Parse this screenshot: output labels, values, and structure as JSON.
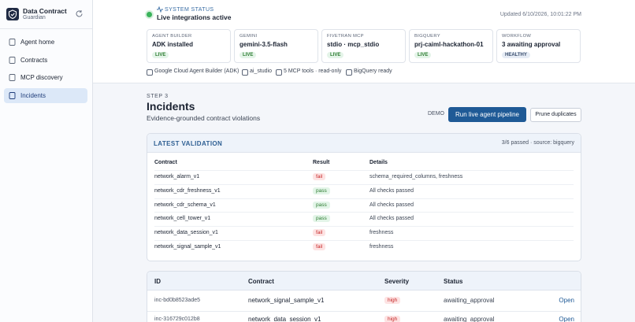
{
  "sidebar": {
    "brand": {
      "title": "Data Contract",
      "subtitle": "Guardian"
    },
    "nav": [
      "Agent home",
      "Contracts",
      "MCP discovery",
      "Incidents"
    ]
  },
  "status": {
    "label": "SYSTEM STATUS",
    "headline": "Live integrations active",
    "updated": "Updated 6/10/2026, 10:01:22 PM",
    "cards": [
      {
        "label": "AGENT BUILDER",
        "value": "ADK installed",
        "badge": "LIVE"
      },
      {
        "label": "GEMINI",
        "value": "gemini-3.5-flash",
        "badge": "LIVE"
      },
      {
        "label": "FIVETRAN MCP",
        "value": "stdio · mcp_stdio",
        "badge": "LIVE"
      },
      {
        "label": "BIGQUERY",
        "value": "prj-caiml-hackathon-01",
        "badge": "LIVE"
      },
      {
        "label": "WORKFLOW",
        "value": "3 awaiting approval",
        "badge": "HEALTHY"
      }
    ],
    "chips": [
      "Google Cloud Agent Builder (ADK)",
      "ai_studio",
      "5 MCP tools · read-only",
      "BigQuery ready"
    ]
  },
  "page": {
    "step": "STEP 3",
    "title": "Incidents",
    "subtitle": "Evidence-grounded contract violations",
    "mode": "DEMO",
    "primary_button": "Run live agent pipeline",
    "secondary_button": "Prune duplicates"
  },
  "validation": {
    "title": "LATEST VALIDATION",
    "summary": "3/6 passed · source: bigquery",
    "columns": [
      "Contract",
      "Result",
      "Details"
    ],
    "rows": [
      [
        "network_alarm_v1",
        "fail",
        "schema_required_columns, freshness"
      ],
      [
        "network_cdr_freshness_v1",
        "pass",
        "All checks passed"
      ],
      [
        "network_cdr_schema_v1",
        "pass",
        "All checks passed"
      ],
      [
        "network_cell_tower_v1",
        "pass",
        "All checks passed"
      ],
      [
        "network_data_session_v1",
        "fail",
        "freshness"
      ],
      [
        "network_signal_sample_v1",
        "fail",
        "freshness"
      ]
    ]
  },
  "incidents": {
    "columns": [
      "ID",
      "Contract",
      "Severity",
      "Status"
    ],
    "rows": [
      [
        "inc-bd0b8523ade5",
        "network_signal_sample_v1",
        "high",
        "awaiting_approval",
        "Open"
      ],
      [
        "inc-316729c012b8",
        "network_data_session_v1",
        "high",
        "awaiting_approval",
        "Open"
      ]
    ]
  }
}
